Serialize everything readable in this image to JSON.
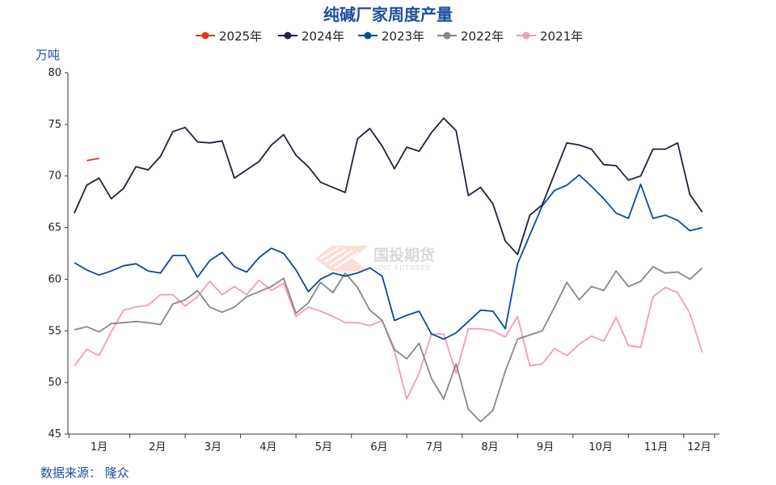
{
  "chart_data": {
    "type": "line",
    "title": "纯碱厂家周度产量",
    "ylabel": "万吨",
    "ylim": [
      45,
      80
    ],
    "yticks": [
      45,
      50,
      55,
      60,
      65,
      70,
      75,
      80
    ],
    "xlim": [
      0,
      52
    ],
    "categories": [
      "1月",
      "2月",
      "3月",
      "4月",
      "5月",
      "6月",
      "7月",
      "8月",
      "9月",
      "10月",
      "11月",
      "12月"
    ],
    "category_centers": [
      2.25,
      6.75,
      11.25,
      15.75,
      20.25,
      24.75,
      29.25,
      33.75,
      38.25,
      42.75,
      47.25,
      51.75
    ],
    "source": "数据来源：  隆众",
    "watermark": {
      "cn": "国投期货",
      "en": "SDIC FUTURES"
    },
    "legend_placement": "top-center",
    "grid": false,
    "series": [
      {
        "name": "2025年",
        "color": "#e8321e",
        "points": [
          [
            1,
            71.5
          ],
          [
            2,
            71.7
          ]
        ]
      },
      {
        "name": "2024年",
        "color": "#1c2240",
        "points": [
          [
            0,
            66.4
          ],
          [
            1,
            69.1
          ],
          [
            2,
            69.8
          ],
          [
            3,
            67.8
          ],
          [
            4,
            68.8
          ],
          [
            5,
            70.9
          ],
          [
            6,
            70.6
          ],
          [
            7,
            71.9
          ],
          [
            8,
            74.3
          ],
          [
            9,
            74.7
          ],
          [
            10,
            73.3
          ],
          [
            11,
            73.2
          ],
          [
            12,
            73.4
          ],
          [
            13,
            69.8
          ],
          [
            14,
            70.6
          ],
          [
            15,
            71.4
          ],
          [
            16,
            73.0
          ],
          [
            17,
            74.0
          ],
          [
            18,
            72.0
          ],
          [
            19,
            70.9
          ],
          [
            20,
            69.4
          ],
          [
            21,
            68.9
          ],
          [
            22,
            68.4
          ],
          [
            23,
            73.6
          ],
          [
            24,
            74.6
          ],
          [
            25,
            72.9
          ],
          [
            26,
            70.7
          ],
          [
            27,
            72.8
          ],
          [
            28,
            72.4
          ],
          [
            29,
            74.2
          ],
          [
            30,
            75.6
          ],
          [
            31,
            74.4
          ],
          [
            32,
            68.1
          ],
          [
            33,
            68.9
          ],
          [
            34,
            67.3
          ],
          [
            35,
            63.7
          ],
          [
            36,
            62.4
          ],
          [
            37,
            66.2
          ],
          [
            38,
            67.2
          ],
          [
            40,
            73.2
          ],
          [
            41,
            73.0
          ],
          [
            42,
            72.6
          ],
          [
            43,
            71.1
          ],
          [
            44,
            71.0
          ],
          [
            45,
            69.6
          ],
          [
            46,
            70.0
          ],
          [
            47,
            72.6
          ],
          [
            48,
            72.6
          ],
          [
            49,
            73.2
          ],
          [
            50,
            68.2
          ],
          [
            51,
            66.5
          ]
        ]
      },
      {
        "name": "2023年",
        "color": "#0e4a9a",
        "points": [
          [
            0,
            61.6
          ],
          [
            1,
            60.9
          ],
          [
            2,
            60.4
          ],
          [
            3,
            60.8
          ],
          [
            4,
            61.3
          ],
          [
            5,
            61.5
          ],
          [
            6,
            60.8
          ],
          [
            7,
            60.6
          ],
          [
            8,
            62.3
          ],
          [
            9,
            62.3
          ],
          [
            10,
            60.2
          ],
          [
            11,
            61.8
          ],
          [
            12,
            62.6
          ],
          [
            13,
            61.2
          ],
          [
            14,
            60.7
          ],
          [
            15,
            62.1
          ],
          [
            16,
            63.0
          ],
          [
            17,
            62.5
          ],
          [
            18,
            60.9
          ],
          [
            19,
            58.8
          ],
          [
            20,
            60.0
          ],
          [
            21,
            60.6
          ],
          [
            22,
            60.3
          ],
          [
            23,
            60.6
          ],
          [
            24,
            61.1
          ],
          [
            25,
            60.3
          ],
          [
            26,
            56.0
          ],
          [
            27,
            56.5
          ],
          [
            28,
            56.9
          ],
          [
            29,
            54.7
          ],
          [
            30,
            54.2
          ],
          [
            31,
            54.8
          ],
          [
            32,
            55.9
          ],
          [
            33,
            57.0
          ],
          [
            34,
            56.9
          ],
          [
            35,
            55.2
          ],
          [
            36,
            61.5
          ],
          [
            37,
            64.3
          ],
          [
            38,
            67.1
          ],
          [
            39,
            68.6
          ],
          [
            40,
            69.1
          ],
          [
            41,
            70.1
          ],
          [
            42,
            69.0
          ],
          [
            43,
            67.8
          ],
          [
            44,
            66.4
          ],
          [
            45,
            65.9
          ],
          [
            46,
            69.2
          ],
          [
            47,
            65.9
          ],
          [
            48,
            66.2
          ],
          [
            49,
            65.7
          ],
          [
            50,
            64.7
          ],
          [
            51,
            65.0
          ]
        ]
      },
      {
        "name": "2022年",
        "color": "#888888",
        "points": [
          [
            0,
            55.1
          ],
          [
            1,
            55.4
          ],
          [
            2,
            54.9
          ],
          [
            3,
            55.7
          ],
          [
            4,
            55.8
          ],
          [
            5,
            55.9
          ],
          [
            6,
            55.8
          ],
          [
            7,
            55.6
          ],
          [
            8,
            57.6
          ],
          [
            9,
            58.0
          ],
          [
            10,
            58.9
          ],
          [
            11,
            57.3
          ],
          [
            12,
            56.8
          ],
          [
            13,
            57.3
          ],
          [
            14,
            58.3
          ],
          [
            15,
            58.8
          ],
          [
            16,
            59.3
          ],
          [
            17,
            60.1
          ],
          [
            18,
            56.7
          ],
          [
            19,
            57.7
          ],
          [
            20,
            59.7
          ],
          [
            21,
            58.7
          ],
          [
            22,
            60.6
          ],
          [
            23,
            59.2
          ],
          [
            24,
            57.0
          ],
          [
            25,
            56.0
          ],
          [
            26,
            53.2
          ],
          [
            27,
            52.3
          ],
          [
            28,
            53.8
          ],
          [
            29,
            50.4
          ],
          [
            30,
            48.4
          ],
          [
            31,
            51.8
          ],
          [
            32,
            47.4
          ],
          [
            33,
            46.2
          ],
          [
            34,
            47.3
          ],
          [
            35,
            51.1
          ],
          [
            36,
            54.2
          ],
          [
            37,
            54.6
          ],
          [
            38,
            55.0
          ],
          [
            39,
            57.3
          ],
          [
            40,
            59.7
          ],
          [
            41,
            58.0
          ],
          [
            42,
            59.3
          ],
          [
            43,
            58.9
          ],
          [
            44,
            60.8
          ],
          [
            45,
            59.3
          ],
          [
            46,
            59.8
          ],
          [
            47,
            61.2
          ],
          [
            48,
            60.6
          ],
          [
            49,
            60.7
          ],
          [
            50,
            60.0
          ],
          [
            51,
            61.1
          ]
        ]
      },
      {
        "name": "2021年",
        "color": "#f59ab8",
        "points": [
          [
            0,
            51.6
          ],
          [
            1,
            53.2
          ],
          [
            2,
            52.6
          ],
          [
            3,
            54.9
          ],
          [
            4,
            57.0
          ],
          [
            5,
            57.3
          ],
          [
            6,
            57.5
          ],
          [
            7,
            58.5
          ],
          [
            8,
            58.5
          ],
          [
            9,
            57.4
          ],
          [
            10,
            58.3
          ],
          [
            11,
            59.8
          ],
          [
            12,
            58.5
          ],
          [
            13,
            59.3
          ],
          [
            14,
            58.5
          ],
          [
            15,
            59.9
          ],
          [
            16,
            58.9
          ],
          [
            17,
            59.6
          ],
          [
            18,
            56.4
          ],
          [
            19,
            57.3
          ],
          [
            20,
            56.9
          ],
          [
            21,
            56.4
          ],
          [
            22,
            55.8
          ],
          [
            23,
            55.8
          ],
          [
            24,
            55.5
          ],
          [
            25,
            56.0
          ],
          [
            26,
            53.0
          ],
          [
            27,
            48.4
          ],
          [
            28,
            50.9
          ],
          [
            29,
            54.7
          ],
          [
            30,
            54.7
          ],
          [
            31,
            50.9
          ],
          [
            32,
            55.2
          ],
          [
            33,
            55.2
          ],
          [
            34,
            55.0
          ],
          [
            35,
            54.4
          ],
          [
            36,
            56.4
          ],
          [
            37,
            51.6
          ],
          [
            38,
            51.8
          ],
          [
            39,
            53.3
          ],
          [
            40,
            52.6
          ],
          [
            41,
            53.7
          ],
          [
            42,
            54.5
          ],
          [
            43,
            54.0
          ],
          [
            44,
            56.3
          ],
          [
            45,
            53.6
          ],
          [
            46,
            53.4
          ],
          [
            47,
            58.3
          ],
          [
            48,
            59.2
          ],
          [
            49,
            58.7
          ],
          [
            50,
            56.7
          ],
          [
            51,
            52.9
          ]
        ]
      }
    ]
  }
}
